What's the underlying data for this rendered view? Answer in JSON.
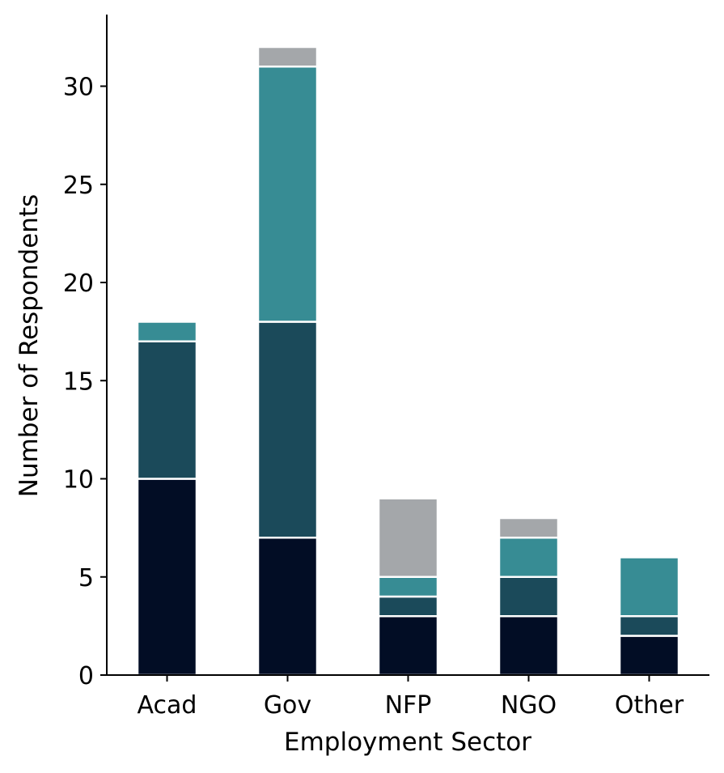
{
  "chart_data": {
    "type": "bar",
    "stacked": true,
    "categories": [
      "Acad",
      "Gov",
      "NFP",
      "NGO",
      "Other"
    ],
    "series": [
      {
        "color": "#020d25",
        "values": [
          10,
          7,
          3,
          3,
          2
        ]
      },
      {
        "color": "#1b4a5a",
        "values": [
          7,
          11,
          1,
          2,
          1
        ]
      },
      {
        "color": "#378c94",
        "values": [
          1,
          13,
          1,
          2,
          3
        ]
      },
      {
        "color": "#a4a7aa",
        "values": [
          0,
          1,
          4,
          1,
          0
        ]
      }
    ],
    "xlabel": "Employment Sector",
    "ylabel": "Number of Respondents",
    "ylim": [
      0,
      33.6
    ],
    "yticks": [
      0,
      5,
      10,
      15,
      20,
      25,
      30
    ],
    "grid": false,
    "legend": "none"
  }
}
